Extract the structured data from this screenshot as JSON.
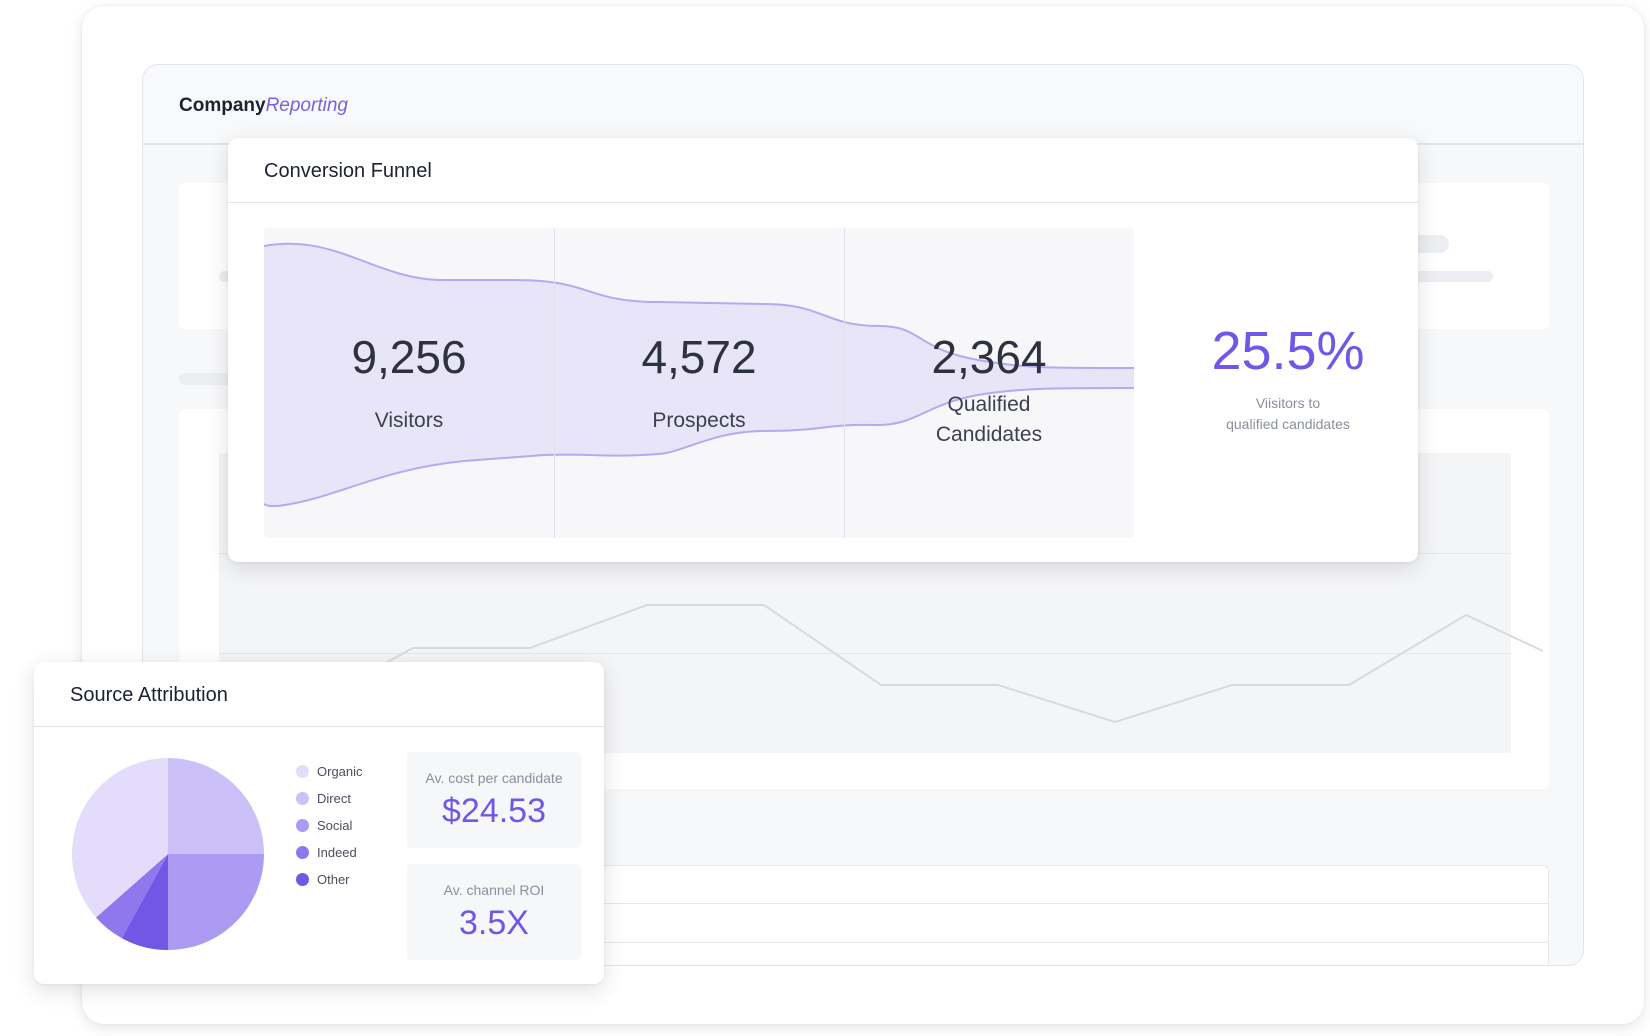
{
  "app": {
    "brand_primary": "Company",
    "brand_secondary": "Reporting"
  },
  "conversion_funnel": {
    "title": "Conversion Funnel",
    "stages": [
      {
        "value": "9,256",
        "label": "Visitors"
      },
      {
        "value": "4,572",
        "label": "Prospects"
      },
      {
        "value": "2,364",
        "label": "Qualified Candidates"
      }
    ],
    "conversion_rate": "25.5%",
    "conversion_caption_line1": "Viisitors to",
    "conversion_caption_line2": "qualified candidates"
  },
  "source_attribution": {
    "title": "Source Attribution",
    "legend": [
      {
        "label": "Organic",
        "color": "#e3ddfb"
      },
      {
        "label": "Direct",
        "color": "#cbc0f7"
      },
      {
        "label": "Social",
        "color": "#ab9bf2"
      },
      {
        "label": "Indeed",
        "color": "#8f78ee"
      },
      {
        "label": "Other",
        "color": "#7257e6"
      }
    ],
    "slices_percent": [
      36.5,
      25,
      25,
      5.5,
      8
    ],
    "metrics": {
      "cost_label": "Av. cost per candidate",
      "cost_value": "$24.53",
      "roi_label": "Av. channel ROI",
      "roi_value": "3.5X"
    }
  },
  "colors": {
    "accent": "#7257e6",
    "funnel_fill": "#e6e2f8",
    "funnel_stroke": "#b8a8ef"
  }
}
